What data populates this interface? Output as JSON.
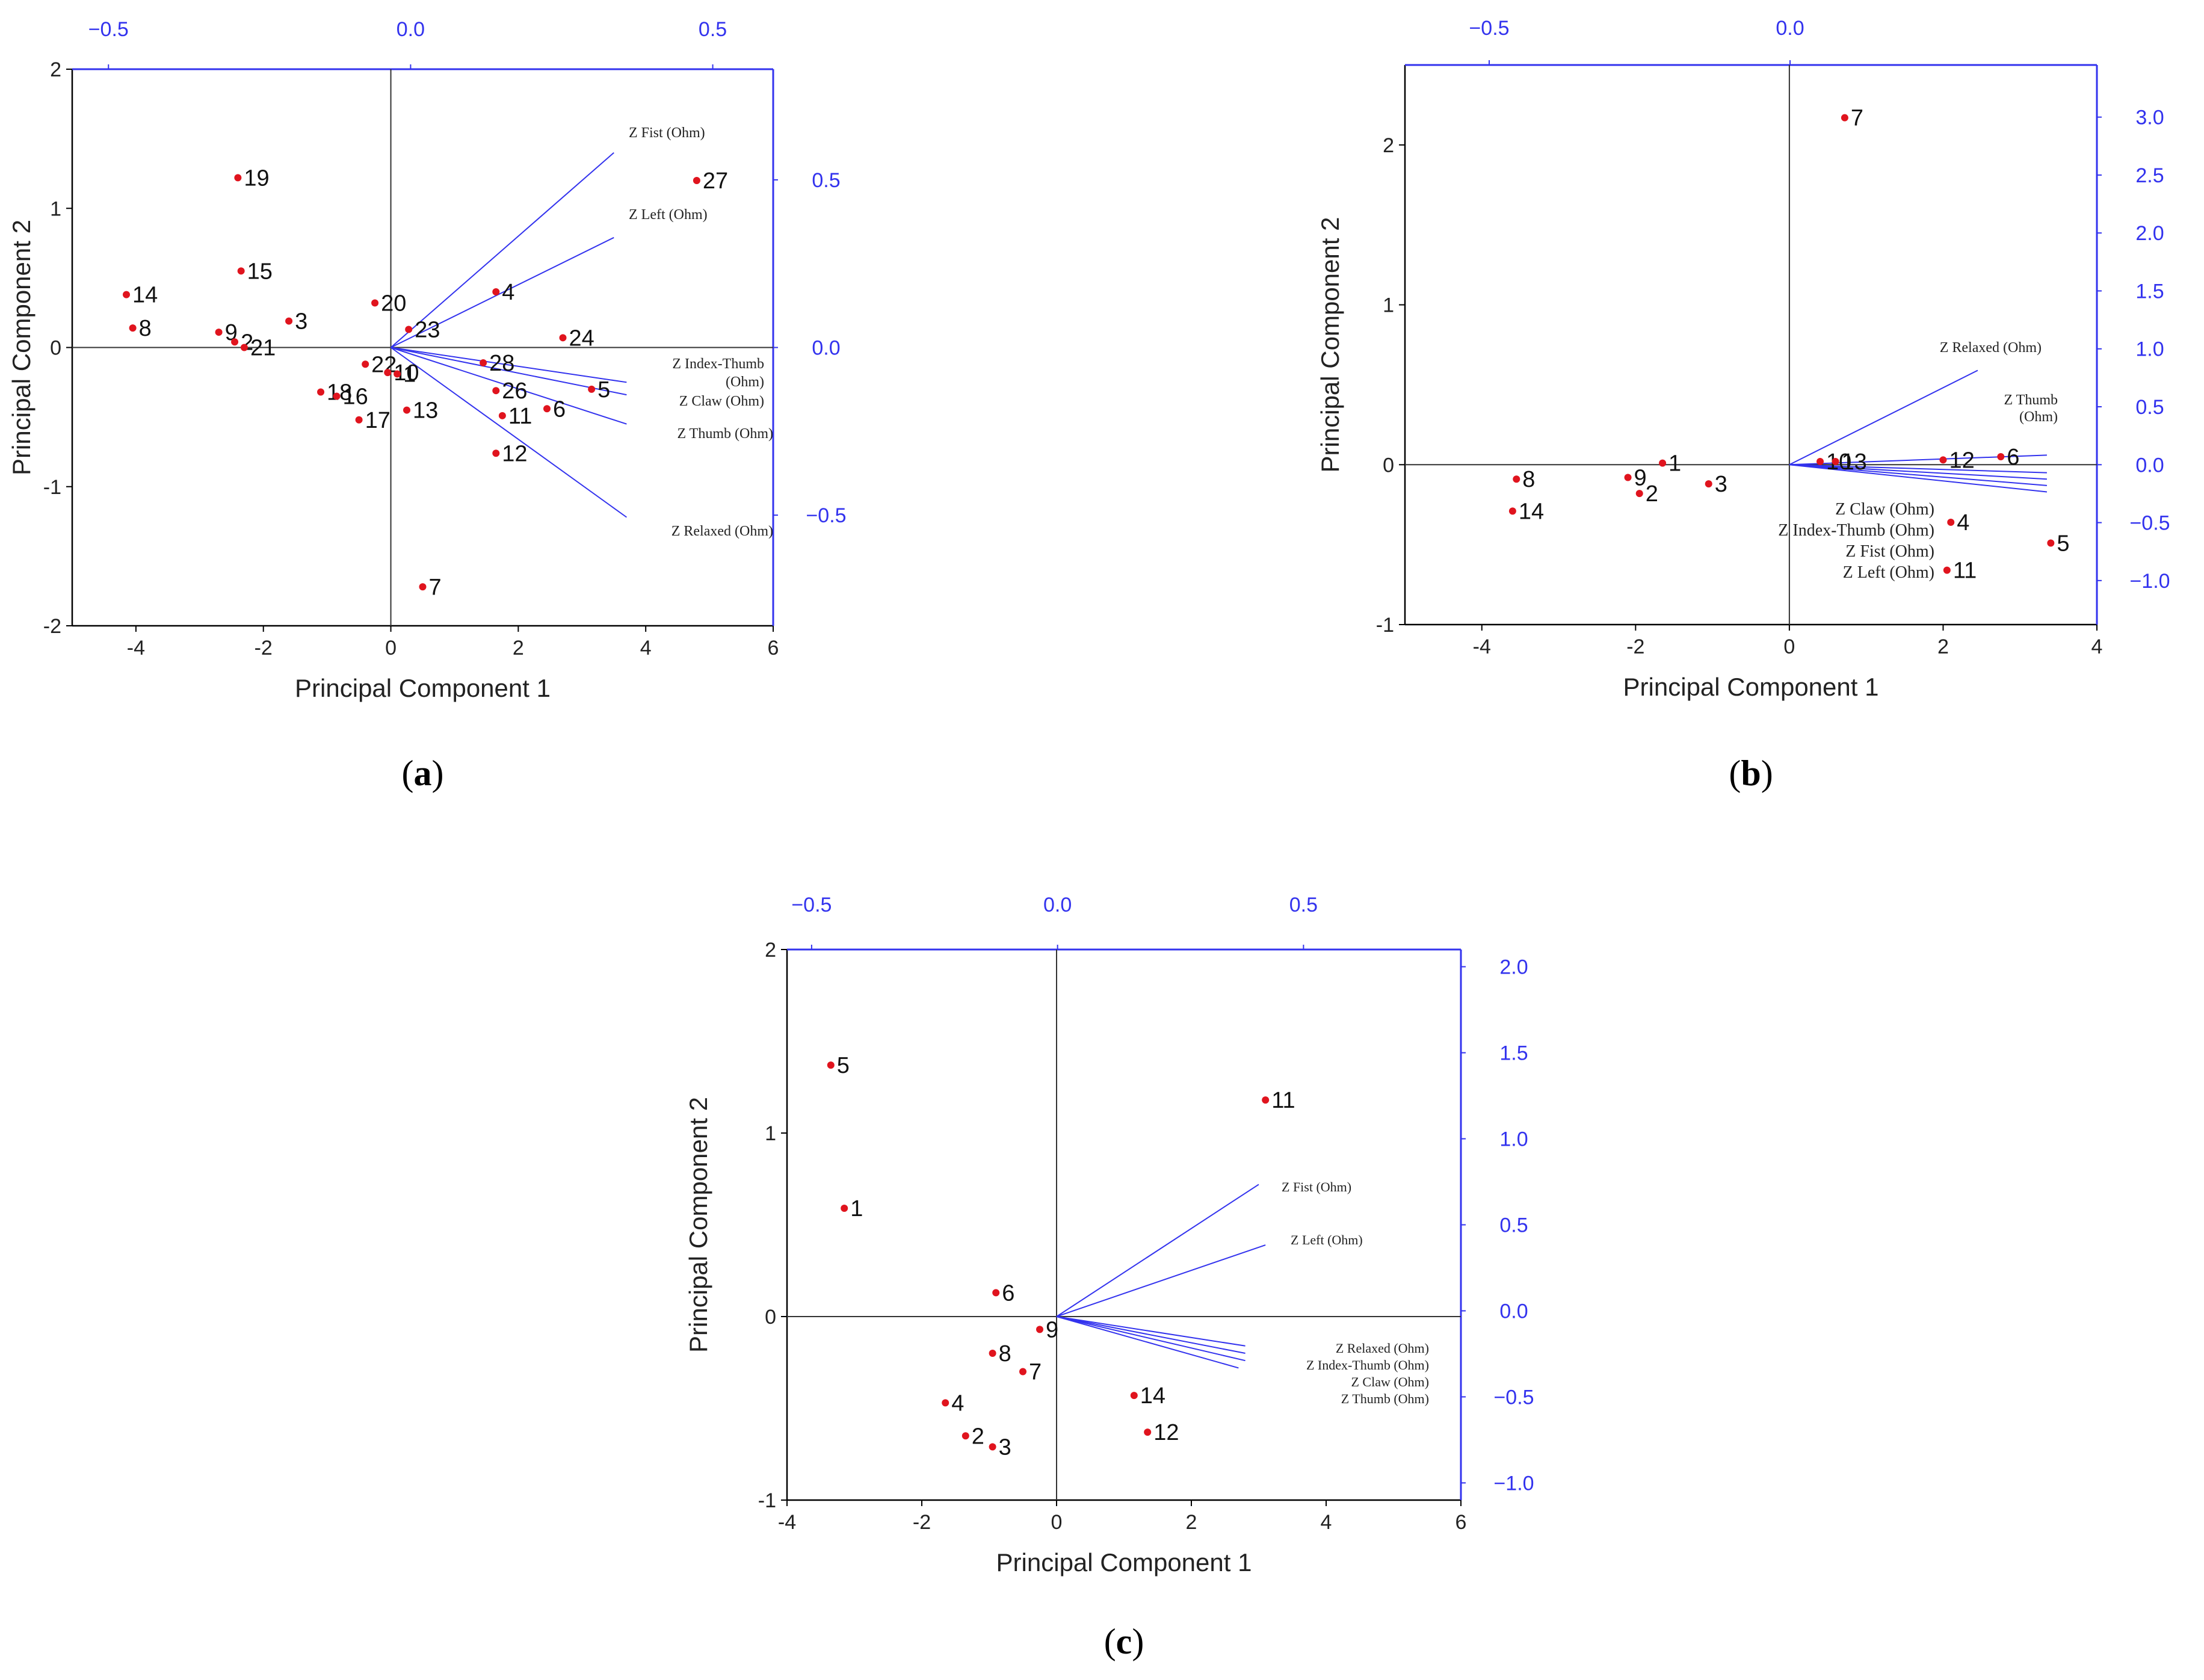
{
  "colors": {
    "axis": "#000000",
    "accent": "#3333ee",
    "point": "#e0141e"
  },
  "chart_data": [
    {
      "panel": "(a)",
      "panel_paren_open": "(",
      "panel_letter": "a",
      "panel_paren_close": ")",
      "type": "scatter",
      "xlabel": "Principal Component 1",
      "ylabel": "Principal Component 2",
      "xlim": [
        -5,
        6
      ],
      "ylim": [
        -2,
        2
      ],
      "xticks": [
        -4,
        -2,
        0,
        2,
        4,
        6
      ],
      "yticks": [
        -2,
        -1,
        0,
        1,
        2
      ],
      "top_ticks": [
        "-0.5",
        "0.0",
        "0.5"
      ],
      "top_tick_values": [
        -0.5,
        0.0,
        0.5
      ],
      "top_lim": [
        -0.56,
        0.6
      ],
      "right_ticks": [
        "0.5",
        "0.0",
        "-0.5"
      ],
      "right_tick_values": [
        0.5,
        0.0,
        -0.5
      ],
      "right_lim": [
        -0.83,
        0.83
      ],
      "points": [
        {
          "label": "19",
          "x": -2.4,
          "y": 1.22
        },
        {
          "label": "27",
          "x": 4.8,
          "y": 1.2
        },
        {
          "label": "15",
          "x": -2.35,
          "y": 0.55
        },
        {
          "label": "14",
          "x": -4.15,
          "y": 0.38
        },
        {
          "label": "4",
          "x": 1.65,
          "y": 0.4
        },
        {
          "label": "20",
          "x": -0.25,
          "y": 0.32
        },
        {
          "label": "3",
          "x": -1.6,
          "y": 0.19
        },
        {
          "label": "8",
          "x": -4.05,
          "y": 0.14
        },
        {
          "label": "23",
          "x": 0.28,
          "y": 0.13
        },
        {
          "label": "9",
          "x": -2.7,
          "y": 0.11
        },
        {
          "label": "24",
          "x": 2.7,
          "y": 0.07
        },
        {
          "label": "2",
          "x": -2.45,
          "y": 0.04
        },
        {
          "label": "21",
          "x": -2.3,
          "y": 0.0
        },
        {
          "label": "28",
          "x": 1.45,
          "y": -0.11
        },
        {
          "label": "22",
          "x": -0.4,
          "y": -0.12
        },
        {
          "label": "10",
          "x": -0.05,
          "y": -0.18
        },
        {
          "label": "1",
          "x": 0.1,
          "y": -0.19
        },
        {
          "label": "5",
          "x": 3.15,
          "y": -0.3
        },
        {
          "label": "26",
          "x": 1.65,
          "y": -0.31
        },
        {
          "label": "18",
          "x": -1.1,
          "y": -0.32
        },
        {
          "label": "16",
          "x": -0.85,
          "y": -0.35
        },
        {
          "label": "6",
          "x": 2.45,
          "y": -0.44
        },
        {
          "label": "13",
          "x": 0.25,
          "y": -0.45
        },
        {
          "label": "11",
          "x": 1.75,
          "y": -0.49
        },
        {
          "label": "17",
          "x": -0.5,
          "y": -0.52
        },
        {
          "label": "12",
          "x": 1.65,
          "y": -0.76
        },
        {
          "label": "7",
          "x": 0.5,
          "y": -1.72
        }
      ],
      "vectors": [
        {
          "label": "Z Fist (Ohm)",
          "x": 3.5,
          "y": 1.4
        },
        {
          "label": "Z Left (Ohm)",
          "x": 3.5,
          "y": 0.79
        },
        {
          "label": "Z Index-Thumb (Ohm)",
          "x": 3.7,
          "y": -0.25
        },
        {
          "label": "Z Claw (Ohm)",
          "x": 3.7,
          "y": -0.34
        },
        {
          "label": "Z Thumb (Ohm)",
          "x": 3.7,
          "y": -0.55
        },
        {
          "label": "Z Relaxed (Ohm)",
          "x": 3.7,
          "y": -1.22
        }
      ]
    },
    {
      "panel": "(b)",
      "panel_paren_open": "(",
      "panel_letter": "b",
      "panel_paren_close": ")",
      "type": "scatter",
      "xlabel": "Principal Component 1",
      "ylabel": "Principal Component 2",
      "xlim": [
        -5,
        4
      ],
      "ylim": [
        -1,
        2.5
      ],
      "xticks": [
        -4,
        -2,
        0,
        2,
        4
      ],
      "yticks": [
        -1,
        0,
        1,
        2
      ],
      "top_ticks": [
        "-0.5",
        "0.0"
      ],
      "top_tick_values": [
        -0.5,
        0.0
      ],
      "top_lim": [
        -0.64,
        0.51
      ],
      "right_ticks": [
        "3.0",
        "2.5",
        "2.0",
        "1.5",
        "1.0",
        "0.5",
        "0.0",
        "-0.5",
        "-1.0"
      ],
      "right_tick_values": [
        3.0,
        2.5,
        2.0,
        1.5,
        1.0,
        0.5,
        0.0,
        -0.5,
        -1.0
      ],
      "right_lim": [
        -1.38,
        3.45
      ],
      "points": [
        {
          "label": "7",
          "x": 0.72,
          "y": 2.17
        },
        {
          "label": "1",
          "x": -1.65,
          "y": 0.01
        },
        {
          "label": "10",
          "x": 0.4,
          "y": 0.02
        },
        {
          "label": "13",
          "x": 0.6,
          "y": 0.02
        },
        {
          "label": "12",
          "x": 2.0,
          "y": 0.03
        },
        {
          "label": "6",
          "x": 2.75,
          "y": 0.05
        },
        {
          "label": "8",
          "x": -3.55,
          "y": -0.09
        },
        {
          "label": "9",
          "x": -2.1,
          "y": -0.08
        },
        {
          "label": "3",
          "x": -1.05,
          "y": -0.12
        },
        {
          "label": "2",
          "x": -1.95,
          "y": -0.18
        },
        {
          "label": "14",
          "x": -3.6,
          "y": -0.29
        },
        {
          "label": "4",
          "x": 2.1,
          "y": -0.36
        },
        {
          "label": "5",
          "x": 3.4,
          "y": -0.49
        },
        {
          "label": "11",
          "x": 2.05,
          "y": -0.66
        }
      ],
      "vectors": [
        {
          "label": "Z Relaxed (Ohm)",
          "x": 2.45,
          "y": 0.59
        },
        {
          "label": "Z Thumb (Ohm)",
          "x": 3.35,
          "y": 0.06
        },
        {
          "label": "Z Claw (Ohm)",
          "x": 3.35,
          "y": -0.05
        },
        {
          "label": "Z Index-Thumb (Ohm)",
          "x": 3.35,
          "y": -0.09
        },
        {
          "label": "Z Fist (Ohm)",
          "x": 3.35,
          "y": -0.13
        },
        {
          "label": "Z Left (Ohm)",
          "x": 3.35,
          "y": -0.17
        }
      ]
    },
    {
      "panel": "(c)",
      "panel_paren_open": "(",
      "panel_letter": "c",
      "panel_paren_close": ")",
      "type": "scatter",
      "xlabel": "Principal Component 1",
      "ylabel": "Principal Component 2",
      "xlim": [
        -4,
        6
      ],
      "ylim": [
        -1,
        2
      ],
      "xticks": [
        -4,
        -2,
        0,
        2,
        4,
        6
      ],
      "yticks": [
        -1,
        0,
        1,
        2
      ],
      "top_ticks": [
        "-0.5",
        "0.0",
        "0.5"
      ],
      "top_tick_values": [
        -0.5,
        0.0,
        0.5
      ],
      "top_lim": [
        -0.55,
        0.82
      ],
      "right_ticks": [
        "2.0",
        "1.5",
        "1.0",
        "0.5",
        "0.0",
        "-0.5",
        "-1.0"
      ],
      "right_tick_values": [
        2.0,
        1.5,
        1.0,
        0.5,
        0.0,
        -0.5,
        -1.0
      ],
      "right_lim": [
        -1.1,
        2.1
      ],
      "points": [
        {
          "label": "5",
          "x": -3.35,
          "y": 1.37
        },
        {
          "label": "11",
          "x": 3.1,
          "y": 1.18
        },
        {
          "label": "1",
          "x": -3.15,
          "y": 0.59
        },
        {
          "label": "6",
          "x": -0.9,
          "y": 0.13
        },
        {
          "label": "9",
          "x": -0.25,
          "y": -0.07
        },
        {
          "label": "8",
          "x": -0.95,
          "y": -0.2
        },
        {
          "label": "7",
          "x": -0.5,
          "y": -0.3
        },
        {
          "label": "14",
          "x": 1.15,
          "y": -0.43
        },
        {
          "label": "4",
          "x": -1.65,
          "y": -0.47
        },
        {
          "label": "12",
          "x": 1.35,
          "y": -0.63
        },
        {
          "label": "2",
          "x": -1.35,
          "y": -0.65
        },
        {
          "label": "3",
          "x": -0.95,
          "y": -0.71
        }
      ],
      "vectors": [
        {
          "label": "Z Fist (Ohm)",
          "x": 3.0,
          "y": 0.72
        },
        {
          "label": "Z Left (Ohm)",
          "x": 3.1,
          "y": 0.39
        },
        {
          "label": "Z Relaxed (Ohm)",
          "x": 2.8,
          "y": -0.16
        },
        {
          "label": "Z Index-Thumb (Ohm)",
          "x": 2.8,
          "y": -0.2
        },
        {
          "label": "Z Claw (Ohm)",
          "x": 2.8,
          "y": -0.24
        },
        {
          "label": "Z Thumb (Ohm)",
          "x": 2.7,
          "y": -0.28
        }
      ]
    }
  ]
}
